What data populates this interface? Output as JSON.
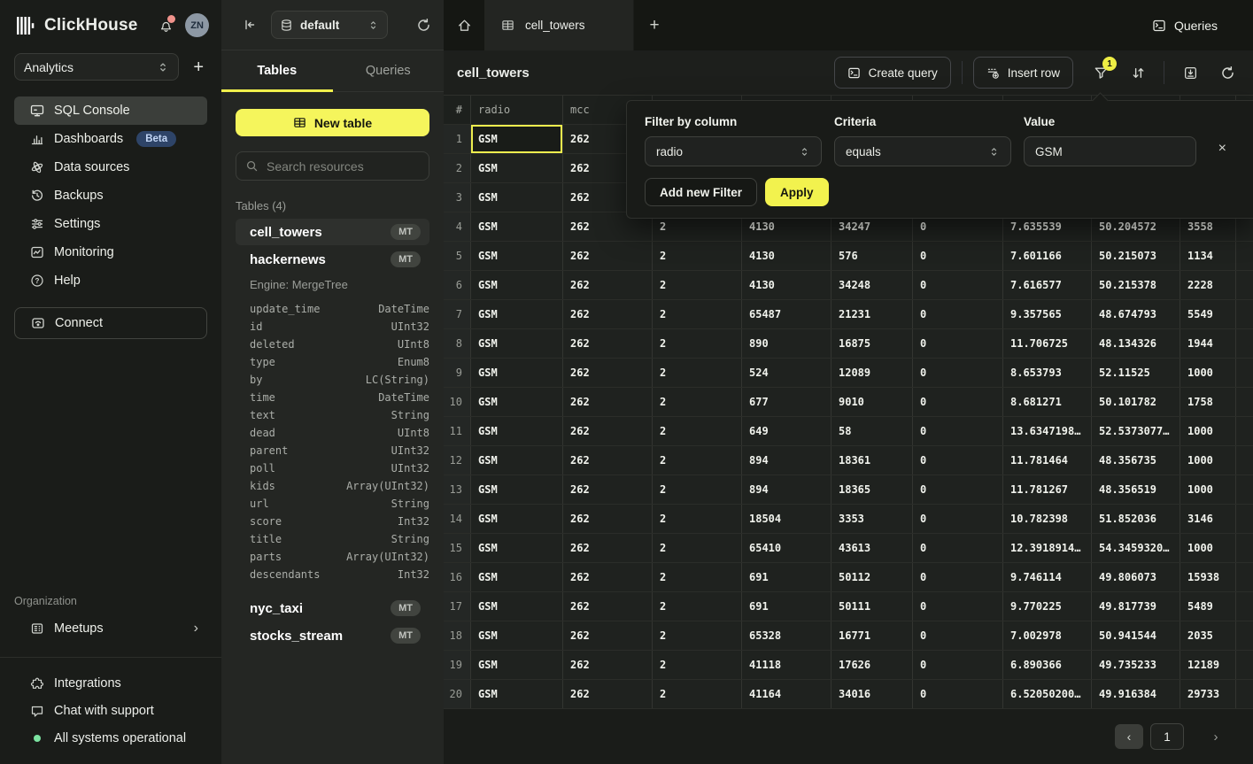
{
  "colors": {
    "accent_yellow": "#f2f24e",
    "tab_underline_yellow": "#f0f04c",
    "selection_yellow": "#eded4e",
    "beta_badge_blue": "#2e4468",
    "status_green": "#7ce3a1",
    "notification_red": "#f0928b"
  },
  "icons": {
    "close": "×",
    "prev": "‹",
    "next": "›",
    "plus": "+",
    "tab_plus": "+",
    "chevron_right": "›"
  },
  "sidebar": {
    "brand": "ClickHouse",
    "avatar": "ZN",
    "workspace": "Analytics",
    "nav": [
      {
        "label": "SQL Console"
      },
      {
        "label": "Dashboards",
        "badge": "Beta"
      },
      {
        "label": "Data sources"
      },
      {
        "label": "Backups"
      },
      {
        "label": "Settings"
      },
      {
        "label": "Monitoring"
      },
      {
        "label": "Help"
      }
    ],
    "connect_label": "Connect",
    "org_section_label": "Organization",
    "meetups_label": "Meetups",
    "footer": {
      "integrations": "Integrations",
      "chat": "Chat with support",
      "status": "All systems operational"
    }
  },
  "explorer": {
    "database": "default",
    "tabs": {
      "tables": "Tables",
      "queries": "Queries"
    },
    "new_table_label": "New table",
    "search_placeholder": "Search resources",
    "section_label": "Tables (4)",
    "tables": [
      {
        "name": "cell_towers",
        "badge": "MT"
      },
      {
        "name": "hackernews",
        "badge": "MT",
        "engine": "Engine: MergeTree",
        "fields": [
          [
            "update_time",
            "DateTime"
          ],
          [
            "id",
            "UInt32"
          ],
          [
            "deleted",
            "UInt8"
          ],
          [
            "type",
            "Enum8"
          ],
          [
            "by",
            "LC(String)"
          ],
          [
            "time",
            "DateTime"
          ],
          [
            "text",
            "String"
          ],
          [
            "dead",
            "UInt8"
          ],
          [
            "parent",
            "UInt32"
          ],
          [
            "poll",
            "UInt32"
          ],
          [
            "kids",
            "Array(UInt32)"
          ],
          [
            "url",
            "String"
          ],
          [
            "score",
            "Int32"
          ],
          [
            "title",
            "String"
          ],
          [
            "parts",
            "Array(UInt32)"
          ],
          [
            "descendants",
            "Int32"
          ]
        ]
      },
      {
        "name": "nyc_taxi",
        "badge": "MT"
      },
      {
        "name": "stocks_stream",
        "badge": "MT"
      }
    ]
  },
  "main": {
    "tab_label": "cell_towers",
    "queries_label": "Queries",
    "title": "cell_towers",
    "create_query_label": "Create query",
    "insert_row_label": "Insert row",
    "filter_badge": "1",
    "page": "1"
  },
  "filter_panel": {
    "column_label": "Filter by column",
    "column_value": "radio",
    "criteria_label": "Criteria",
    "criteria_value": "equals",
    "value_label": "Value",
    "value": "GSM",
    "add_filter_label": "Add new Filter",
    "apply_label": "Apply"
  },
  "table": {
    "headers": {
      "n": "#",
      "radio": "radio",
      "mcc": "mcc"
    },
    "rows": [
      {
        "n": "1",
        "radio": "GSM",
        "mcc": "262",
        "net": "",
        "area": "",
        "cell": "",
        "unit": "",
        "lon": "",
        "lat": "",
        "range": ""
      },
      {
        "n": "2",
        "radio": "GSM",
        "mcc": "262",
        "net": "",
        "area": "",
        "cell": "",
        "unit": "",
        "lon": "",
        "lat": "",
        "range": ""
      },
      {
        "n": "3",
        "radio": "GSM",
        "mcc": "262",
        "net": "",
        "area": "",
        "cell": "",
        "unit": "",
        "lon": "",
        "lat": "",
        "range": ""
      },
      {
        "n": "4",
        "radio": "GSM",
        "mcc": "262",
        "net": "2",
        "area": "4130",
        "cell": "34247",
        "unit": "0",
        "lon": "7.635539",
        "lat": "50.204572",
        "range": "3558"
      },
      {
        "n": "5",
        "radio": "GSM",
        "mcc": "262",
        "net": "2",
        "area": "4130",
        "cell": "576",
        "unit": "0",
        "lon": "7.601166",
        "lat": "50.215073",
        "range": "1134"
      },
      {
        "n": "6",
        "radio": "GSM",
        "mcc": "262",
        "net": "2",
        "area": "4130",
        "cell": "34248",
        "unit": "0",
        "lon": "7.616577",
        "lat": "50.215378",
        "range": "2228"
      },
      {
        "n": "7",
        "radio": "GSM",
        "mcc": "262",
        "net": "2",
        "area": "65487",
        "cell": "21231",
        "unit": "0",
        "lon": "9.357565",
        "lat": "48.674793",
        "range": "5549"
      },
      {
        "n": "8",
        "radio": "GSM",
        "mcc": "262",
        "net": "2",
        "area": "890",
        "cell": "16875",
        "unit": "0",
        "lon": "11.706725",
        "lat": "48.134326",
        "range": "1944"
      },
      {
        "n": "9",
        "radio": "GSM",
        "mcc": "262",
        "net": "2",
        "area": "524",
        "cell": "12089",
        "unit": "0",
        "lon": "8.653793",
        "lat": "52.11525",
        "range": "1000"
      },
      {
        "n": "10",
        "radio": "GSM",
        "mcc": "262",
        "net": "2",
        "area": "677",
        "cell": "9010",
        "unit": "0",
        "lon": "8.681271",
        "lat": "50.101782",
        "range": "1758"
      },
      {
        "n": "11",
        "radio": "GSM",
        "mcc": "262",
        "net": "2",
        "area": "649",
        "cell": "58",
        "unit": "0",
        "lon": "13.6347198…",
        "lat": "52.5373077…",
        "range": "1000"
      },
      {
        "n": "12",
        "radio": "GSM",
        "mcc": "262",
        "net": "2",
        "area": "894",
        "cell": "18361",
        "unit": "0",
        "lon": "11.781464",
        "lat": "48.356735",
        "range": "1000"
      },
      {
        "n": "13",
        "radio": "GSM",
        "mcc": "262",
        "net": "2",
        "area": "894",
        "cell": "18365",
        "unit": "0",
        "lon": "11.781267",
        "lat": "48.356519",
        "range": "1000"
      },
      {
        "n": "14",
        "radio": "GSM",
        "mcc": "262",
        "net": "2",
        "area": "18504",
        "cell": "3353",
        "unit": "0",
        "lon": "10.782398",
        "lat": "51.852036",
        "range": "3146"
      },
      {
        "n": "15",
        "radio": "GSM",
        "mcc": "262",
        "net": "2",
        "area": "65410",
        "cell": "43613",
        "unit": "0",
        "lon": "12.3918914…",
        "lat": "54.3459320…",
        "range": "1000"
      },
      {
        "n": "16",
        "radio": "GSM",
        "mcc": "262",
        "net": "2",
        "area": "691",
        "cell": "50112",
        "unit": "0",
        "lon": "9.746114",
        "lat": "49.806073",
        "range": "15938"
      },
      {
        "n": "17",
        "radio": "GSM",
        "mcc": "262",
        "net": "2",
        "area": "691",
        "cell": "50111",
        "unit": "0",
        "lon": "9.770225",
        "lat": "49.817739",
        "range": "5489"
      },
      {
        "n": "18",
        "radio": "GSM",
        "mcc": "262",
        "net": "2",
        "area": "65328",
        "cell": "16771",
        "unit": "0",
        "lon": "7.002978",
        "lat": "50.941544",
        "range": "2035"
      },
      {
        "n": "19",
        "radio": "GSM",
        "mcc": "262",
        "net": "2",
        "area": "41118",
        "cell": "17626",
        "unit": "0",
        "lon": "6.890366",
        "lat": "49.735233",
        "range": "12189"
      },
      {
        "n": "20",
        "radio": "GSM",
        "mcc": "262",
        "net": "2",
        "area": "41164",
        "cell": "34016",
        "unit": "0",
        "lon": "6.52050200…",
        "lat": "49.916384",
        "range": "29733"
      }
    ]
  }
}
